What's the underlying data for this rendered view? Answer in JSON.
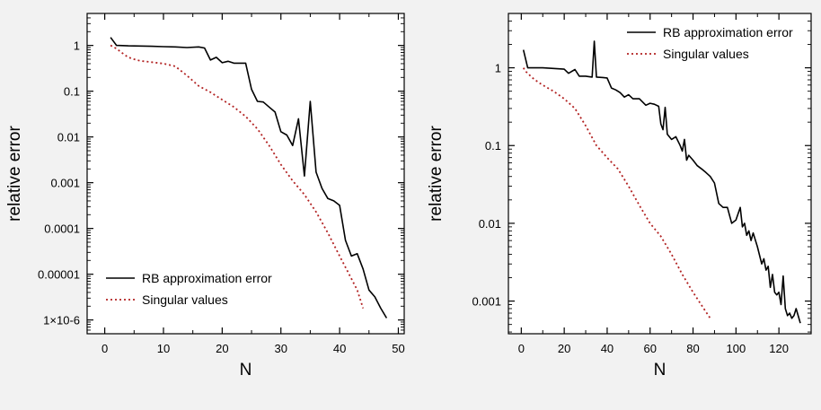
{
  "chart_data": [
    {
      "type": "line",
      "xlabel": "N",
      "ylabel": "relative error",
      "yscale": "log",
      "xlim": [
        -3,
        51
      ],
      "ylim": [
        5e-07,
        5
      ],
      "xticks": [
        0,
        10,
        20,
        30,
        40,
        50
      ],
      "xtick_labels": [
        "0",
        "10",
        "20",
        "30",
        "40",
        "50"
      ],
      "yticks": [
        1,
        0.1,
        0.01,
        0.001,
        0.0001,
        1e-05,
        1e-06
      ],
      "ytick_labels": [
        "1",
        "0.1",
        "0.01",
        "0.001",
        "0.0001",
        "0.00001",
        "1×10-6"
      ],
      "legend_position": "bottom-left",
      "series": [
        {
          "name": "RB approximation error",
          "color": "#000000",
          "style": "solid",
          "x": [
            1,
            2,
            4,
            6,
            8,
            10,
            12,
            14,
            16,
            17,
            18,
            19,
            20,
            21,
            22,
            24,
            25,
            26,
            27,
            28,
            29,
            30,
            31,
            32,
            33,
            34,
            35,
            36,
            37,
            38,
            39,
            40,
            41,
            42,
            43,
            44,
            45,
            46,
            47,
            48
          ],
          "y": [
            1.5,
            1.0,
            0.98,
            0.97,
            0.96,
            0.94,
            0.93,
            0.9,
            0.93,
            0.88,
            0.48,
            0.55,
            0.42,
            0.45,
            0.41,
            0.41,
            0.11,
            0.06,
            0.058,
            0.045,
            0.035,
            0.013,
            0.011,
            0.0065,
            0.025,
            0.0014,
            0.06,
            0.0017,
            0.00075,
            0.00045,
            0.0004,
            0.00032,
            5.5e-05,
            2.5e-05,
            2.8e-05,
            1.3e-05,
            4.5e-06,
            3.2e-06,
            1.8e-06,
            1.1e-06
          ]
        },
        {
          "name": "Singular values",
          "color": "#b22222",
          "style": "dotted",
          "x": [
            1,
            2,
            3,
            4,
            5,
            6,
            8,
            10,
            12,
            14,
            16,
            18,
            20,
            22,
            24,
            26,
            28,
            30,
            32,
            34,
            36,
            38,
            40,
            42,
            43,
            44
          ],
          "y": [
            1.0,
            0.85,
            0.68,
            0.55,
            0.5,
            0.46,
            0.43,
            0.4,
            0.35,
            0.22,
            0.13,
            0.095,
            0.065,
            0.045,
            0.028,
            0.015,
            0.0065,
            0.0025,
            0.0011,
            0.00055,
            0.00023,
            8e-05,
            2.5e-05,
            8e-06,
            4.5e-06,
            1.8e-06
          ]
        }
      ]
    },
    {
      "type": "line",
      "xlabel": "N",
      "ylabel": "relative error",
      "yscale": "log",
      "xlim": [
        -6,
        135
      ],
      "ylim": [
        0.00038,
        5
      ],
      "xticks": [
        0,
        20,
        40,
        60,
        80,
        100,
        120
      ],
      "xtick_labels": [
        "0",
        "20",
        "40",
        "60",
        "80",
        "100",
        "120"
      ],
      "yticks": [
        1,
        0.1,
        0.01,
        0.001
      ],
      "ytick_labels": [
        "1",
        "0.1",
        "0.01",
        "0.001"
      ],
      "legend_position": "top-right",
      "series": [
        {
          "name": "RB approximation error",
          "color": "#000000",
          "style": "solid",
          "x": [
            1,
            3,
            10,
            20,
            22,
            25,
            27,
            30,
            33,
            34,
            35,
            38,
            40,
            42,
            44,
            46,
            48,
            50,
            52,
            55,
            58,
            60,
            62,
            64,
            65,
            66,
            67,
            68,
            70,
            72,
            74,
            75,
            76,
            77,
            78,
            80,
            82,
            84,
            86,
            88,
            90,
            92,
            94,
            96,
            98,
            100,
            102,
            103,
            104,
            105,
            106,
            107,
            108,
            110,
            112,
            113,
            114,
            115,
            116,
            117,
            118,
            119,
            120,
            121,
            122,
            123,
            124,
            125,
            126,
            127,
            128,
            130
          ],
          "y": [
            1.7,
            1.0,
            1.0,
            0.96,
            0.85,
            0.95,
            0.78,
            0.78,
            0.76,
            2.2,
            0.76,
            0.75,
            0.74,
            0.55,
            0.52,
            0.48,
            0.42,
            0.45,
            0.4,
            0.4,
            0.33,
            0.35,
            0.34,
            0.32,
            0.19,
            0.16,
            0.31,
            0.14,
            0.12,
            0.13,
            0.1,
            0.085,
            0.12,
            0.065,
            0.075,
            0.065,
            0.055,
            0.05,
            0.045,
            0.04,
            0.033,
            0.018,
            0.016,
            0.016,
            0.01,
            0.011,
            0.016,
            0.009,
            0.01,
            0.007,
            0.008,
            0.006,
            0.0075,
            0.005,
            0.003,
            0.0035,
            0.0025,
            0.0028,
            0.0015,
            0.0022,
            0.0013,
            0.0012,
            0.0013,
            0.0009,
            0.0021,
            0.0008,
            0.00065,
            0.0007,
            0.0006,
            0.00065,
            0.0008,
            0.00052
          ]
        },
        {
          "name": "Singular values",
          "color": "#b22222",
          "style": "dotted",
          "x": [
            1,
            2,
            3,
            5,
            8,
            10,
            15,
            20,
            25,
            30,
            35,
            40,
            45,
            50,
            55,
            60,
            65,
            70,
            75,
            80,
            85,
            88
          ],
          "y": [
            1.0,
            0.9,
            0.85,
            0.75,
            0.65,
            0.6,
            0.5,
            0.4,
            0.3,
            0.18,
            0.1,
            0.07,
            0.05,
            0.03,
            0.017,
            0.01,
            0.0068,
            0.004,
            0.0022,
            0.0013,
            0.0008,
            0.0006
          ]
        }
      ]
    }
  ]
}
